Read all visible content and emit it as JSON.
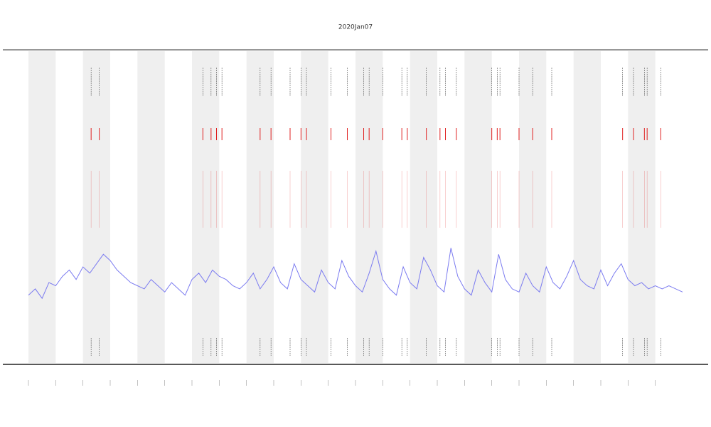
{
  "chart_data": {
    "type": "line",
    "title": "2020Jan07",
    "xlim": [
      0,
      24
    ],
    "ylim": [
      0,
      1
    ],
    "xticks": [
      0,
      1,
      2,
      3,
      4,
      5,
      6,
      7,
      8,
      9,
      10,
      11,
      12,
      13,
      14,
      15,
      16,
      17,
      18,
      19,
      20,
      21,
      22,
      23
    ],
    "bands": [
      0,
      2,
      4,
      6,
      8,
      10,
      12,
      14,
      16,
      18,
      20,
      22
    ],
    "band_color": "#efefef",
    "event_color": "#e02020",
    "x": [
      0,
      0.25,
      0.5,
      0.75,
      1,
      1.25,
      1.5,
      1.75,
      2,
      2.25,
      2.5,
      2.75,
      3,
      3.25,
      3.5,
      3.75,
      4,
      4.25,
      4.5,
      4.75,
      5,
      5.25,
      5.5,
      5.75,
      6,
      6.25,
      6.5,
      6.75,
      7,
      7.25,
      7.5,
      7.75,
      8,
      8.25,
      8.5,
      8.75,
      9,
      9.25,
      9.5,
      9.75,
      10,
      10.25,
      10.5,
      10.75,
      11,
      11.25,
      11.5,
      11.75,
      12,
      12.25,
      12.5,
      12.75,
      13,
      13.25,
      13.5,
      13.75,
      14,
      14.25,
      14.5,
      14.75,
      15,
      15.25,
      15.5,
      15.75,
      16,
      16.25,
      16.5,
      16.75,
      17,
      17.25,
      17.5,
      17.75,
      18,
      18.25,
      18.5,
      18.75,
      19,
      19.25,
      19.5,
      19.75,
      20,
      20.25,
      20.5,
      20.75,
      21,
      21.25,
      21.5,
      21.75,
      22,
      22.25,
      22.5,
      22.75,
      23,
      23.25,
      23.5,
      23.75,
      24
    ],
    "series": [
      {
        "color": "#7b7bf0",
        "values": [
          0.22,
          0.24,
          0.21,
          0.26,
          0.25,
          0.28,
          0.3,
          0.27,
          0.31,
          0.29,
          0.32,
          0.35,
          0.33,
          0.3,
          0.28,
          0.26,
          0.25,
          0.24,
          0.27,
          0.25,
          0.23,
          0.26,
          0.24,
          0.22,
          0.27,
          0.29,
          0.26,
          0.3,
          0.28,
          0.27,
          0.25,
          0.24,
          0.26,
          0.29,
          0.24,
          0.27,
          0.31,
          0.26,
          0.24,
          0.32,
          0.27,
          0.25,
          0.23,
          0.3,
          0.26,
          0.24,
          0.33,
          0.28,
          0.25,
          0.23,
          0.29,
          0.36,
          0.27,
          0.24,
          0.22,
          0.31,
          0.26,
          0.24,
          0.34,
          0.3,
          0.25,
          0.23,
          0.37,
          0.28,
          0.24,
          0.22,
          0.3,
          0.26,
          0.23,
          0.35,
          0.27,
          0.24,
          0.23,
          0.29,
          0.25,
          0.23,
          0.31,
          0.26,
          0.24,
          0.28,
          0.33,
          0.27,
          0.25,
          0.24,
          0.3,
          0.25,
          0.29,
          0.32,
          0.27,
          0.25,
          0.26,
          0.24,
          0.25,
          0.24,
          0.25,
          0.24,
          0.23
        ]
      }
    ],
    "events": [
      2.3,
      2.6,
      6.4,
      6.7,
      6.9,
      7.1,
      8.5,
      8.9,
      9.6,
      10.0,
      10.2,
      11.1,
      11.7,
      12.3,
      12.5,
      13.0,
      13.7,
      13.9,
      14.6,
      15.1,
      15.3,
      15.7,
      17.0,
      17.2,
      17.3,
      18.0,
      18.5,
      19.2,
      21.8,
      22.2,
      22.6,
      22.7,
      23.2
    ]
  }
}
